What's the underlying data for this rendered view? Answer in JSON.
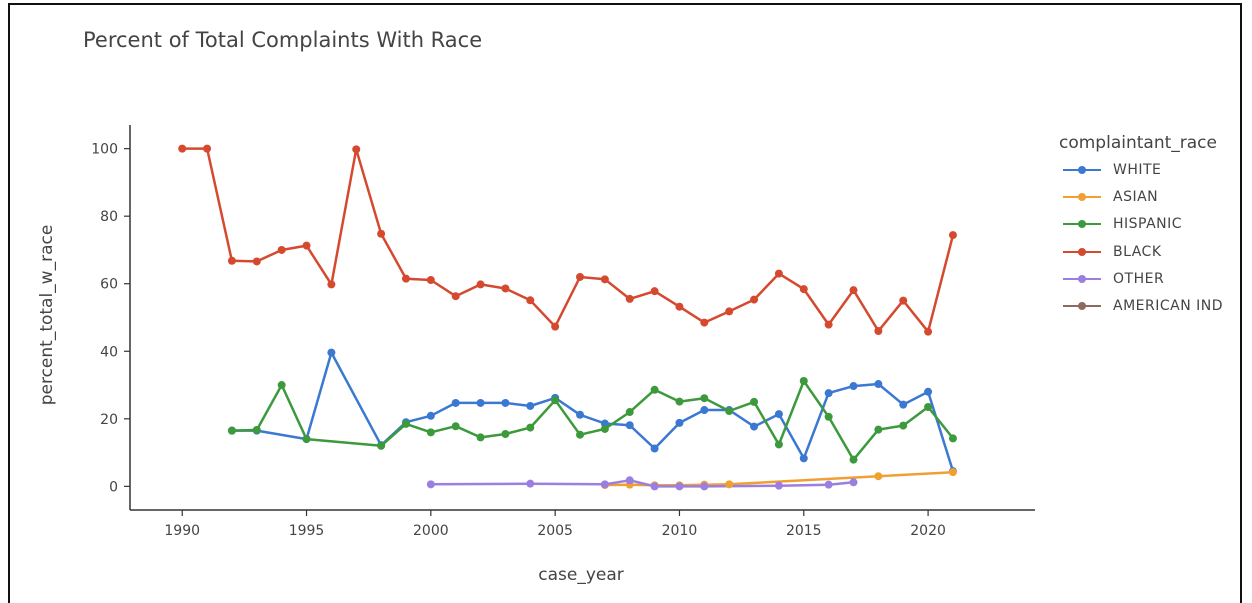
{
  "chart_data": {
    "type": "line",
    "title": "Percent of Total Complaints With Race",
    "xlabel": "case_year",
    "ylabel": "percent_total_w_race",
    "xlim": [
      1987.9,
      2024.3
    ],
    "ylim": [
      -7,
      107
    ],
    "x_ticks": [
      1990,
      1995,
      2000,
      2005,
      2010,
      2015,
      2020
    ],
    "y_ticks": [
      0,
      20,
      40,
      60,
      80,
      100
    ],
    "legend_title": "complaintant_race",
    "legend_position": "right",
    "grid": false,
    "series": [
      {
        "name": "WHITE",
        "color": "#3b78d1",
        "x": [
          1992,
          1993,
          1995,
          1996,
          1998,
          1999,
          2000,
          2001,
          2002,
          2003,
          2004,
          2005,
          2006,
          2007,
          2008,
          2009,
          2010,
          2011,
          2012,
          2013,
          2014,
          2015,
          2016,
          2017,
          2018,
          2019,
          2020,
          2021
        ],
        "y": [
          16.5,
          16.5,
          14,
          39.6,
          12.2,
          19,
          20.9,
          24.7,
          24.7,
          24.7,
          23.8,
          26.2,
          21.2,
          18.6,
          18.1,
          11.2,
          18.8,
          22.6,
          22.6,
          17.7,
          21.4,
          8.3,
          27.6,
          29.7,
          30.3,
          24.2,
          28,
          4.5
        ]
      },
      {
        "name": "ASIAN",
        "color": "#f0a030",
        "x": [
          2007,
          2008,
          2009,
          2010,
          2011,
          2012,
          2018,
          2021
        ],
        "y": [
          0.4,
          0.5,
          0.3,
          0.3,
          0.5,
          0.6,
          3,
          4.2
        ]
      },
      {
        "name": "HISPANIC",
        "color": "#3c9a3c",
        "x": [
          1992,
          1993,
          1994,
          1995,
          1998,
          1999,
          2000,
          2001,
          2002,
          2003,
          2004,
          2005,
          2006,
          2007,
          2008,
          2009,
          2010,
          2011,
          2012,
          2013,
          2014,
          2015,
          2016,
          2017,
          2018,
          2019,
          2020,
          2021
        ],
        "y": [
          16.5,
          16.7,
          30,
          14,
          12,
          18.5,
          16,
          17.8,
          14.5,
          15.5,
          17.4,
          25.5,
          15.3,
          17,
          22,
          28.6,
          25.1,
          26.1,
          22.3,
          25,
          12.4,
          31.2,
          20.6,
          7.9,
          16.8,
          18,
          23.5,
          14.2
        ]
      },
      {
        "name": "BLACK",
        "color": "#d5492f",
        "x": [
          1990,
          1991,
          1992,
          1993,
          1994,
          1995,
          1996,
          1997,
          1998,
          1999,
          2000,
          2001,
          2002,
          2003,
          2004,
          2005,
          2006,
          2007,
          2008,
          2009,
          2010,
          2011,
          2012,
          2013,
          2014,
          2015,
          2016,
          2017,
          2018,
          2019,
          2020,
          2021
        ],
        "y": [
          100,
          100,
          66.8,
          66.6,
          70,
          71.3,
          59.8,
          99.8,
          74.8,
          61.5,
          61.1,
          56.3,
          59.8,
          58.6,
          55.1,
          47.3,
          62,
          61.3,
          55.5,
          57.8,
          53.2,
          48.5,
          51.8,
          55.3,
          63,
          58.4,
          47.9,
          58.1,
          46,
          55,
          45.8,
          74.4
        ]
      },
      {
        "name": "OTHER",
        "color": "#9b7fe0",
        "x": [
          2000,
          2004,
          2007,
          2008,
          2009,
          2010,
          2011,
          2014,
          2016,
          2017
        ],
        "y": [
          0.6,
          0.8,
          0.6,
          1.8,
          0,
          0,
          0,
          0.2,
          0.5,
          1.2
        ]
      },
      {
        "name": "AMERICAN IND",
        "color": "#8c6a5e",
        "x": [],
        "y": []
      }
    ]
  }
}
